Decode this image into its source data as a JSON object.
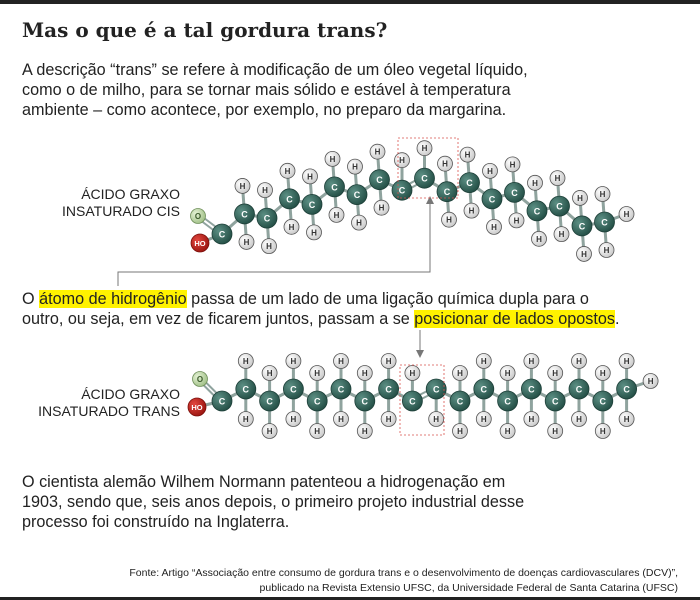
{
  "header": {
    "title": "Mas o que é a tal gordura trans?"
  },
  "intro": {
    "lines": [
      "A descrição “trans” se refere à modificação de um óleo vegetal líquido,",
      "como o de milho, para se tornar mais sólido e estável à temperatura",
      "ambiente – como acontece, por exemplo, no preparo da margarina."
    ]
  },
  "cis_label": {
    "lines": [
      "ÁCIDO GRAXO",
      "INSATURADO CIS"
    ]
  },
  "explanation": {
    "lines": [
      [
        {
          "text": "O ",
          "highlight": false
        },
        {
          "text": "átomo de hidrogênio",
          "highlight": true
        },
        {
          "text": " passa de um lado de uma ligação química dupla para o",
          "highlight": false
        }
      ],
      [
        {
          "text": "outro, ou seja, em vez de ficarem juntos, passam a se ",
          "highlight": false
        },
        {
          "text": "posicionar de lados opostos",
          "highlight": true
        },
        {
          "text": ".",
          "highlight": false
        }
      ]
    ]
  },
  "trans_label": {
    "lines": [
      "ÁCIDO GRAXO",
      "INSATURADO TRANS"
    ]
  },
  "history": {
    "lines": [
      "O cientista alemão Wilhem Normann patenteou a hidrogenação em",
      "1903, sendo que, seis anos depois, o primeiro projeto industrial desse",
      "processo foi construído na Inglaterra."
    ]
  },
  "source": {
    "lines": [
      "Fonte: Artigo “Associação entre consumo de gordura trans e o desenvolvimento de doenças cardiovasculares (DCV)”,",
      "publicado na Revista Extensio UFSC, da Universidade Federal de Santa Catarina (UFSC)"
    ]
  },
  "atoms": {
    "carbon": "C",
    "hydrogen": "H",
    "oxygen": "O",
    "hydroxyl": "HO"
  }
}
